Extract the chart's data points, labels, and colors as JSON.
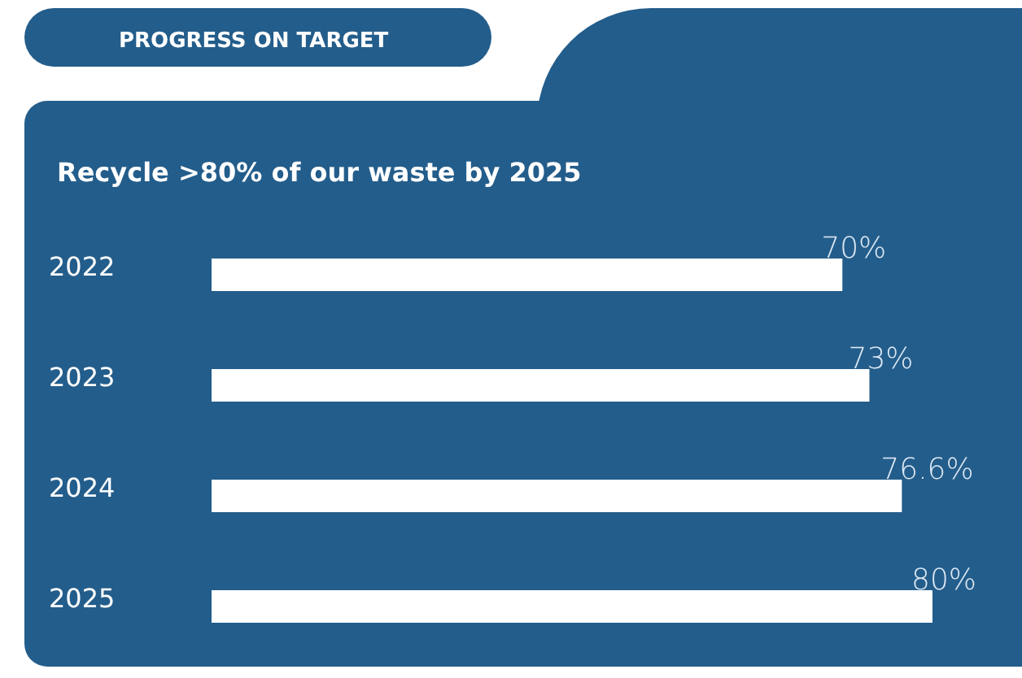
{
  "chart_data": {
    "type": "bar",
    "orientation": "horizontal",
    "title": "PROGRESS ON TARGET",
    "subtitle": "Recycle >80% of our waste by 2025",
    "categories": [
      "2022",
      "2023",
      "2024",
      "2025"
    ],
    "values": [
      70,
      73,
      76.6,
      80
    ],
    "value_labels": [
      "70%",
      "73%",
      "76.6%",
      "80%"
    ],
    "color": "#ffffff",
    "tick_labels": "y"
  }
}
